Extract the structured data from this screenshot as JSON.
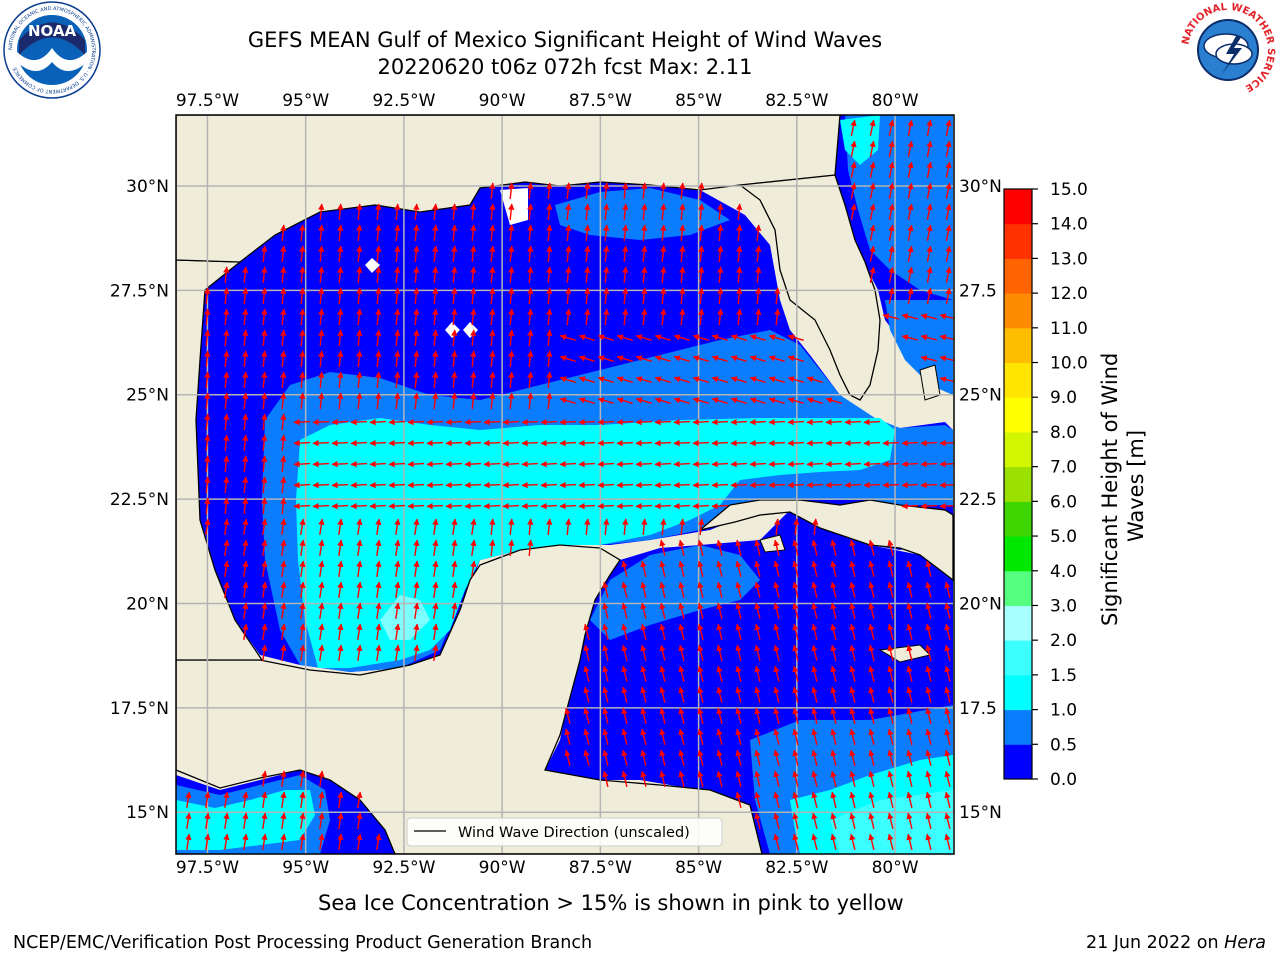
{
  "header": {
    "title_line1": "GEFS MEAN Gulf of Mexico Significant Height of Wind Waves",
    "title_line2": "20220620 t06z 072h fcst   Max: 2.11"
  },
  "logos": {
    "left": {
      "text": "NOAA",
      "ring_text": "NATIONAL OCEANIC AND ATMOSPHERIC ADMINISTRATION · U.S. DEPARTMENT OF COMMERCE",
      "color": "#0a62b8"
    },
    "right": {
      "ring_text": "NATIONAL WEATHER SERVICE",
      "color": "#e3242b"
    }
  },
  "map": {
    "lon_range": [
      -98.3,
      -78.5
    ],
    "lat_range": [
      14.0,
      31.7
    ],
    "lon_ticks": [
      "97.5°W",
      "95°W",
      "92.5°W",
      "90°W",
      "87.5°W",
      "85°W",
      "82.5°W",
      "80°W"
    ],
    "lat_ticks_left": [
      "30°N",
      "27.5°N",
      "25°N",
      "22.5°N",
      "20°N",
      "17.5°N",
      "15°N"
    ],
    "lat_ticks_right": [
      "30°N",
      "27.5",
      "25°N",
      "22.5",
      "20°N",
      "17.5",
      "15°N"
    ],
    "land_color": "#efedda",
    "arrow_color": "#ff0000",
    "legend_label": "Wind Wave Direction (unscaled)"
  },
  "colorbar": {
    "label": "Significant Height of Wind Waves [m]",
    "ticks": [
      "0.0",
      "0.5",
      "1.0",
      "1.5",
      "2.0",
      "3.0",
      "4.0",
      "5.0",
      "6.0",
      "7.0",
      "8.0",
      "9.0",
      "10.0",
      "11.0",
      "12.0",
      "13.0",
      "14.0",
      "15.0"
    ],
    "colors": [
      "#0000ff",
      "#0a7dff",
      "#00ffff",
      "#3cffff",
      "#a8ffff",
      "#55ff7f",
      "#00e800",
      "#3fd600",
      "#9be000",
      "#d2f500",
      "#ffff00",
      "#ffe500",
      "#ffbd00",
      "#ff8c00",
      "#ff6400",
      "#ff3200",
      "#ff0000"
    ]
  },
  "footer": {
    "subtitle": "Sea Ice Concentration > 15% is shown in pink to yellow",
    "left": "NCEP/EMC/Verification Post Processing Product Generation Branch",
    "right_date": "21 Jun 2022 on ",
    "right_host": "Hera"
  }
}
